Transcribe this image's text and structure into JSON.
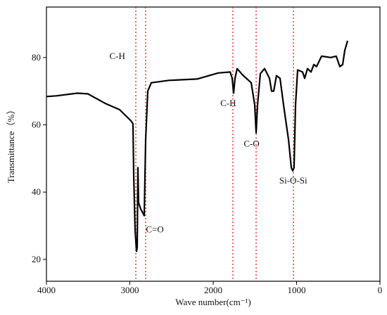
{
  "chart_data": {
    "type": "line",
    "x_label": "Wave number(cm⁻¹)",
    "y_label": "Transmittance（%）",
    "xlim": [
      4000,
      0
    ],
    "ylim": [
      13.5,
      95
    ],
    "xticks": [
      4000,
      3000,
      2000,
      1000,
      0
    ],
    "yticks": [
      20,
      40,
      60,
      80
    ],
    "series": [
      {
        "color": "#000000",
        "x": [
          4000,
          3882,
          3629,
          3502,
          3291,
          3122,
          2987,
          2962,
          2954,
          2937,
          2920,
          2911,
          2903,
          2895,
          2870,
          2827,
          2810,
          2785,
          2743,
          2532,
          2194,
          1941,
          1797,
          1772,
          1755,
          1738,
          1713,
          1646,
          1544,
          1502,
          1485,
          1468,
          1435,
          1384,
          1325,
          1300,
          1274,
          1241,
          1198,
          1156,
          1097,
          1063,
          1046,
          1030,
          1013,
          987,
          928,
          903,
          869,
          827,
          793,
          760,
          700,
          591,
          525,
          481,
          447,
          422,
          388
        ],
        "values": [
          68.4,
          68.6,
          69.4,
          69.2,
          66.3,
          64.5,
          61.2,
          60.3,
          45.2,
          28.7,
          22.4,
          23.5,
          47.3,
          36.9,
          35,
          33,
          55.6,
          70,
          72.5,
          73.2,
          73.6,
          75.4,
          75.7,
          73.8,
          69.4,
          73.8,
          76.7,
          74.8,
          72.5,
          65.9,
          57.6,
          65.9,
          75.2,
          76.7,
          73.8,
          70,
          70,
          74.6,
          73.8,
          65.9,
          55.6,
          47.3,
          46.3,
          47.3,
          65.9,
          76.3,
          75.7,
          73.8,
          76.7,
          75.7,
          77.9,
          77.3,
          80.4,
          80,
          80.4,
          77.3,
          77.9,
          82.1,
          85
        ]
      }
    ],
    "reference_lines": {
      "color": "#e02020",
      "x": [
        2928,
        2810,
        1764,
        1485,
        1038
      ]
    },
    "annotations": [
      {
        "text": "C-H",
        "x": 3150,
        "y": 79.5
      },
      {
        "text": "C=O",
        "x": 2700,
        "y": 28
      },
      {
        "text": "C-H",
        "x": 1820,
        "y": 65.5
      },
      {
        "text": "C-O",
        "x": 1540,
        "y": 53.5
      },
      {
        "text": "Si-O-Si",
        "x": 1040,
        "y": 42.5
      }
    ]
  }
}
